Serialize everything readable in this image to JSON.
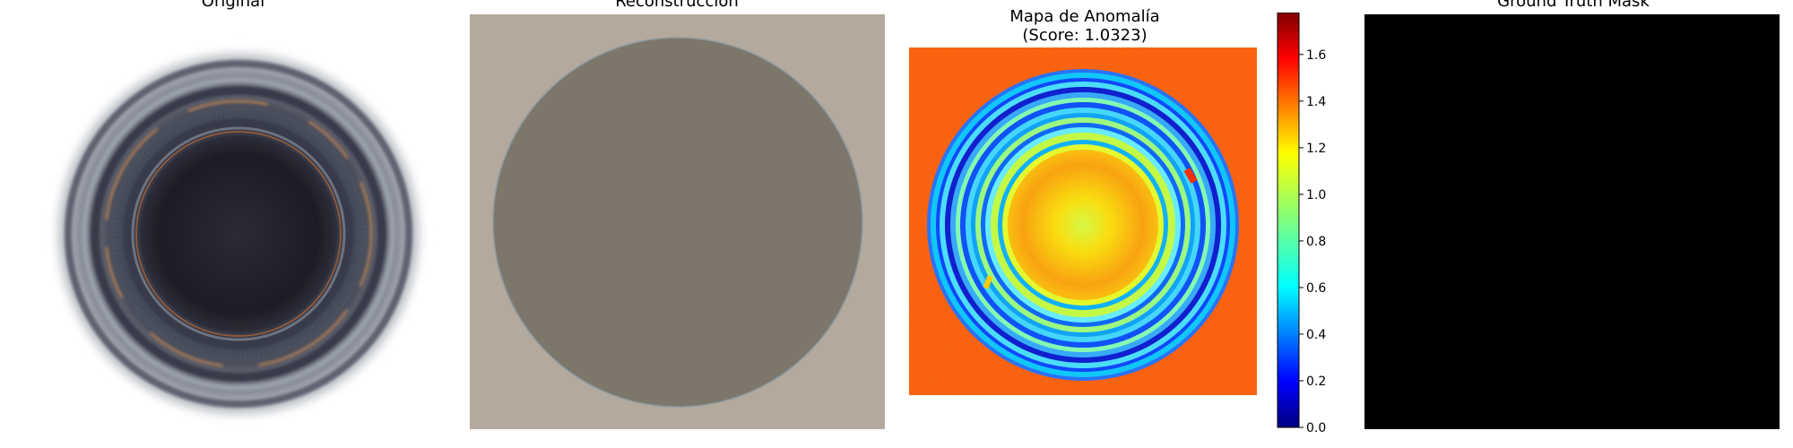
{
  "figure": {
    "background": "#ffffff"
  },
  "panels": {
    "original": {
      "title": "Original",
      "image": "bottle-top-photo",
      "background": "#ffffff"
    },
    "reconstruction": {
      "title": "Reconstrucción",
      "image": "bottle-top-reconstruction",
      "background": "#b3a99d",
      "disk_color": "#7d776b"
    },
    "anomaly_map": {
      "title": "Mapa de Anomalía",
      "subtitle": "(Score: 1.0323)",
      "image": "anomaly-heatmap",
      "background": "#ff5a00",
      "colormap": "jet"
    },
    "ground_truth": {
      "title": "Ground Truth Mask",
      "image": "empty-mask",
      "background": "#000000"
    }
  },
  "colorbar": {
    "min": 0.0,
    "max": 1.78,
    "ticks": [
      "0.0",
      "0.2",
      "0.4",
      "0.6",
      "0.8",
      "1.0",
      "1.2",
      "1.4",
      "1.6"
    ],
    "colormap": "jet"
  }
}
